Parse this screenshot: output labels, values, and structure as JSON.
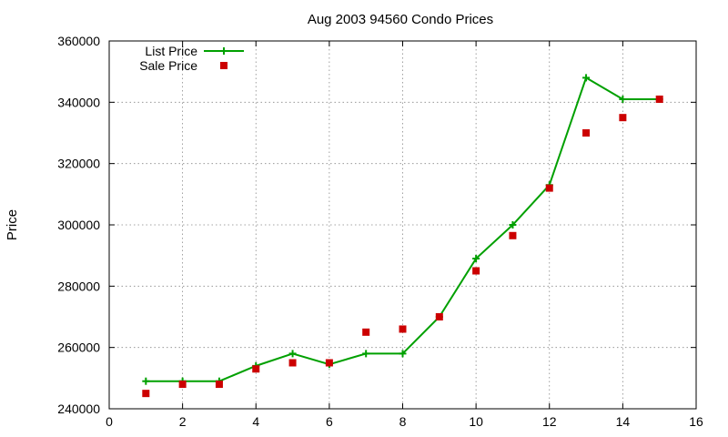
{
  "chart_data": {
    "type": "line",
    "title": "Aug 2003 94560 Condo Prices",
    "xlabel": "",
    "ylabel": "Price",
    "xlim": [
      0,
      16
    ],
    "ylim": [
      240000,
      360000
    ],
    "x_ticks": [
      0,
      2,
      4,
      6,
      8,
      10,
      12,
      14,
      16
    ],
    "y_ticks": [
      240000,
      260000,
      280000,
      300000,
      320000,
      340000,
      360000
    ],
    "grid": true,
    "legend_position": "top-left",
    "series": [
      {
        "name": "List Price",
        "style": "line-with-plus-markers",
        "color": "#00a000",
        "x": [
          1,
          2,
          3,
          4,
          5,
          6,
          7,
          8,
          9,
          10,
          11,
          12,
          13,
          14,
          15
        ],
        "y": [
          249000,
          249000,
          249000,
          254000,
          258000,
          254500,
          258000,
          258000,
          270000,
          289000,
          300000,
          313000,
          348000,
          341000,
          341000
        ]
      },
      {
        "name": "Sale Price",
        "style": "square-points",
        "color": "#cc0000",
        "x": [
          1,
          2,
          3,
          4,
          5,
          6,
          7,
          8,
          9,
          10,
          11,
          12,
          13,
          14,
          15
        ],
        "y": [
          245000,
          248000,
          248000,
          253000,
          255000,
          255000,
          265000,
          266000,
          270000,
          285000,
          296500,
          312000,
          330000,
          335000,
          341000
        ]
      }
    ]
  }
}
